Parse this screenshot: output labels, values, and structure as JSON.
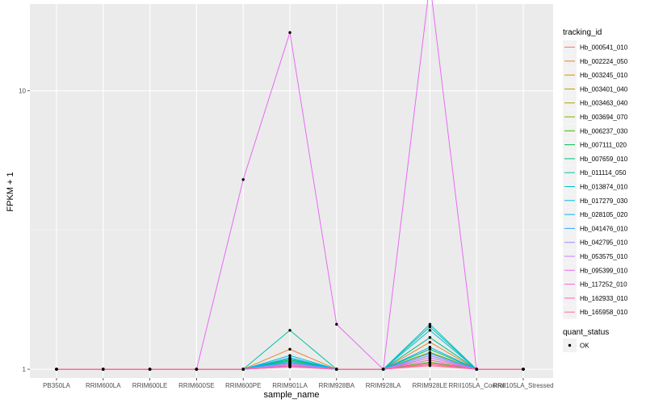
{
  "chart_data": {
    "type": "line",
    "xlabel": "sample_name",
    "ylabel": "FPKM + 1",
    "y_scale": "log10",
    "ylim": [
      0.93,
      20.5
    ],
    "grid": true,
    "legend_placement": "right",
    "y_ticks": [
      1,
      10
    ],
    "y_tick_labels": [
      "1",
      "10"
    ],
    "categories": [
      "PB350LA",
      "RRIM600LA",
      "RRIM600LE",
      "RRIM600SE",
      "RRIM600PE",
      "RRIM901LA",
      "RRIM928BA",
      "RRIM928LA",
      "RRIM928LE",
      "RRII105LA_Control",
      "RRII105LA_Stressed"
    ],
    "series_legend_title": "tracking_id",
    "series": [
      {
        "name": "Hb_000541_010",
        "color": "#F8766D",
        "values": [
          1,
          1,
          1,
          1,
          1,
          1.03,
          1,
          1,
          1.04,
          1,
          1
        ]
      },
      {
        "name": "Hb_002224_050",
        "color": "#EA8331",
        "values": [
          1,
          1,
          1,
          1,
          1,
          1.18,
          1,
          1,
          1.25,
          1,
          1
        ]
      },
      {
        "name": "Hb_003245_010",
        "color": "#D89000",
        "values": [
          1,
          1,
          1,
          1,
          1,
          1.05,
          1,
          1,
          1.08,
          1,
          1
        ]
      },
      {
        "name": "Hb_003401_040",
        "color": "#C09B00",
        "values": [
          1,
          1,
          1,
          1,
          1,
          1.04,
          1,
          1,
          1.1,
          1,
          1
        ]
      },
      {
        "name": "Hb_003463_040",
        "color": "#A3A500",
        "values": [
          1,
          1,
          1,
          1,
          1,
          1.06,
          1,
          1,
          1.12,
          1,
          1
        ]
      },
      {
        "name": "Hb_003694_070",
        "color": "#7CAE00",
        "values": [
          1,
          1,
          1,
          1,
          1,
          1.05,
          1,
          1,
          1.15,
          1,
          1
        ]
      },
      {
        "name": "Hb_006237_030",
        "color": "#39B600",
        "values": [
          1,
          1,
          1,
          1,
          1,
          1.03,
          1,
          1,
          1.06,
          1,
          1
        ]
      },
      {
        "name": "Hb_007111_020",
        "color": "#00BB4E",
        "values": [
          1,
          1,
          1,
          1,
          1,
          1.08,
          1,
          1,
          1.18,
          1,
          1
        ]
      },
      {
        "name": "Hb_007659_010",
        "color": "#00BF7D",
        "values": [
          1,
          1,
          1,
          1,
          1,
          1.09,
          1,
          1,
          1.3,
          1,
          1
        ]
      },
      {
        "name": "Hb_011114_050",
        "color": "#00C1A3",
        "values": [
          1,
          1,
          1,
          1,
          1,
          1.38,
          1,
          1,
          1.42,
          1,
          1
        ]
      },
      {
        "name": "Hb_013874_010",
        "color": "#00BFC4",
        "values": [
          1,
          1,
          1,
          1,
          1,
          1.07,
          1,
          1,
          1.45,
          1,
          1
        ]
      },
      {
        "name": "Hb_017279_030",
        "color": "#00BAE0",
        "values": [
          1,
          1,
          1,
          1,
          1,
          1.12,
          1,
          1,
          1.38,
          1,
          1
        ]
      },
      {
        "name": "Hb_028105_020",
        "color": "#00B0F6",
        "values": [
          1,
          1,
          1,
          1,
          1,
          1.1,
          1,
          1,
          1.2,
          1,
          1
        ]
      },
      {
        "name": "Hb_041476_010",
        "color": "#35A2FF",
        "values": [
          1,
          1,
          1,
          1,
          1,
          1.06,
          1,
          1,
          1.14,
          1,
          1
        ]
      },
      {
        "name": "Hb_042795_010",
        "color": "#9590FF",
        "values": [
          1,
          1,
          1,
          1,
          1,
          1.05,
          1,
          1,
          1.12,
          1,
          1
        ]
      },
      {
        "name": "Hb_053575_010",
        "color": "#C77CFF",
        "values": [
          1,
          1,
          1,
          1,
          1,
          1.04,
          1,
          1,
          1.1,
          1,
          1
        ]
      },
      {
        "name": "Hb_095399_010",
        "color": "#E76BF3",
        "values": [
          1,
          1,
          1,
          1,
          4.8,
          16.2,
          1.45,
          1,
          24.5,
          1,
          1
        ]
      },
      {
        "name": "Hb_117252_010",
        "color": "#FA62DB",
        "values": [
          1,
          1,
          1,
          1,
          1,
          1.03,
          1,
          1,
          1.08,
          1,
          1
        ]
      },
      {
        "name": "Hb_162933_010",
        "color": "#FF62BC",
        "values": [
          1,
          1,
          1,
          1,
          1,
          1.02,
          1,
          1,
          1.05,
          1,
          1
        ]
      },
      {
        "name": "Hb_165958_010",
        "color": "#FF6C91",
        "values": [
          1,
          1,
          1,
          1,
          1,
          1.02,
          1,
          1,
          1.03,
          1,
          1
        ]
      }
    ],
    "point_legend_title": "quant_status",
    "point_legend_items": [
      {
        "label": "OK",
        "color": "#000000"
      }
    ]
  }
}
